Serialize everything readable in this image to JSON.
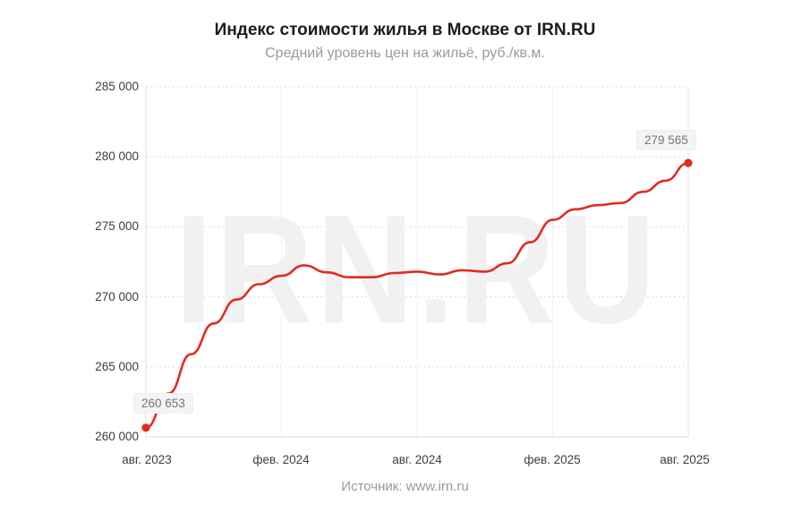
{
  "header": {
    "title": "Индекс стоимости жилья в Москве от IRN.RU",
    "subtitle": "Средний уровень цен на жильё, руб./кв.м."
  },
  "watermark": "IRN.RU",
  "footer": {
    "source": "Источник: www.irn.ru"
  },
  "chart_data": {
    "type": "line",
    "title": "Индекс стоимости жилья в Москве от IRN.RU",
    "subtitle": "Средний уровень цен на жильё, руб./кв.м.",
    "x": [
      "авг. 2023",
      "сен. 2023",
      "окт. 2023",
      "ноя. 2023",
      "дек. 2023",
      "янв. 2024",
      "фев. 2024",
      "мар. 2024",
      "апр. 2024",
      "май 2024",
      "июн. 2024",
      "июл. 2024",
      "авг. 2024",
      "сен. 2024",
      "окт. 2024",
      "ноя. 2024",
      "дек. 2024",
      "янв. 2025",
      "фев. 2025",
      "мар. 2025",
      "апр. 2025",
      "май 2025",
      "июн. 2025",
      "июл. 2025",
      "авг. 2025"
    ],
    "values": [
      260653,
      263100,
      265900,
      268100,
      269800,
      270900,
      271500,
      272250,
      271750,
      271400,
      271400,
      271700,
      271800,
      271600,
      271900,
      271800,
      272400,
      273900,
      275500,
      276250,
      276550,
      276700,
      277500,
      278300,
      279565
    ],
    "x_tick_labels": [
      "авг. 2023",
      "фев. 2024",
      "авг. 2024",
      "фев. 2025",
      "авг. 2025"
    ],
    "y_ticks": [
      "285 000",
      "280 000",
      "275 000",
      "270 000",
      "265 000",
      "260 000"
    ],
    "ylim": [
      260000,
      285000
    ],
    "xlabel": "",
    "ylabel": "",
    "legend": "none",
    "grid": "horizontal dashed light-gray, vertical solid very-light at half-year ticks",
    "line_color": "#e32b21",
    "point_color": "#e32b21",
    "point_labels": {
      "first": "260 653",
      "last": "279 565"
    },
    "first_point": {
      "x": "авг. 2023",
      "value": 260653
    },
    "last_point": {
      "x": "авг. 2025",
      "value": 279565
    },
    "watermark": "IRN.RU",
    "source": "Источник: www.irn.ru"
  }
}
